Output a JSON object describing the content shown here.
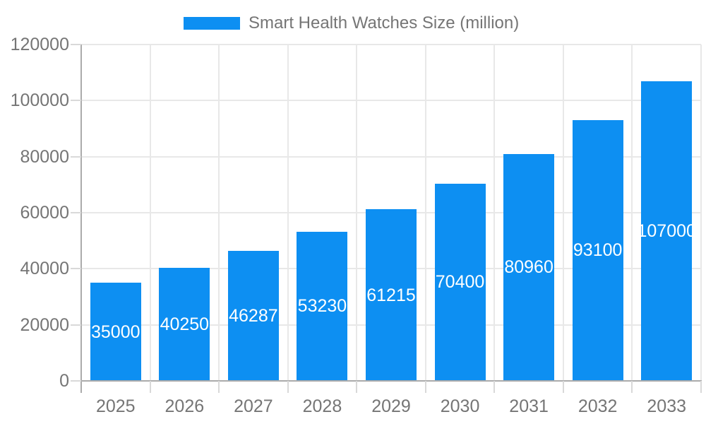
{
  "chart_data": {
    "type": "bar",
    "title": "Smart Health Watches Size (million)",
    "categories": [
      "2025",
      "2026",
      "2027",
      "2028",
      "2029",
      "2030",
      "2031",
      "2032",
      "2033"
    ],
    "values": [
      35000,
      40250,
      46287,
      53230,
      61215,
      70400,
      80960,
      93100,
      107000
    ],
    "value_labels": [
      "35000",
      "40250",
      "46287",
      "53230",
      "61215",
      "70400",
      "80960",
      "93100",
      "107000"
    ],
    "ytick_labels": [
      "0",
      "20000",
      "40000",
      "60000",
      "80000",
      "100000",
      "120000"
    ],
    "yticks": [
      0,
      20000,
      40000,
      60000,
      80000,
      100000,
      120000
    ],
    "ylim": [
      0,
      120000
    ],
    "xlabel": "",
    "ylabel": "",
    "grid": true,
    "legend_position": "top",
    "colors": {
      "bar": "#0d8ff2",
      "value_label": "#ffffff",
      "axis_text": "#757575",
      "gridline": "#e8e8e8",
      "axis_line": "#ababab",
      "outside_tick": "#d9d9d9"
    }
  }
}
